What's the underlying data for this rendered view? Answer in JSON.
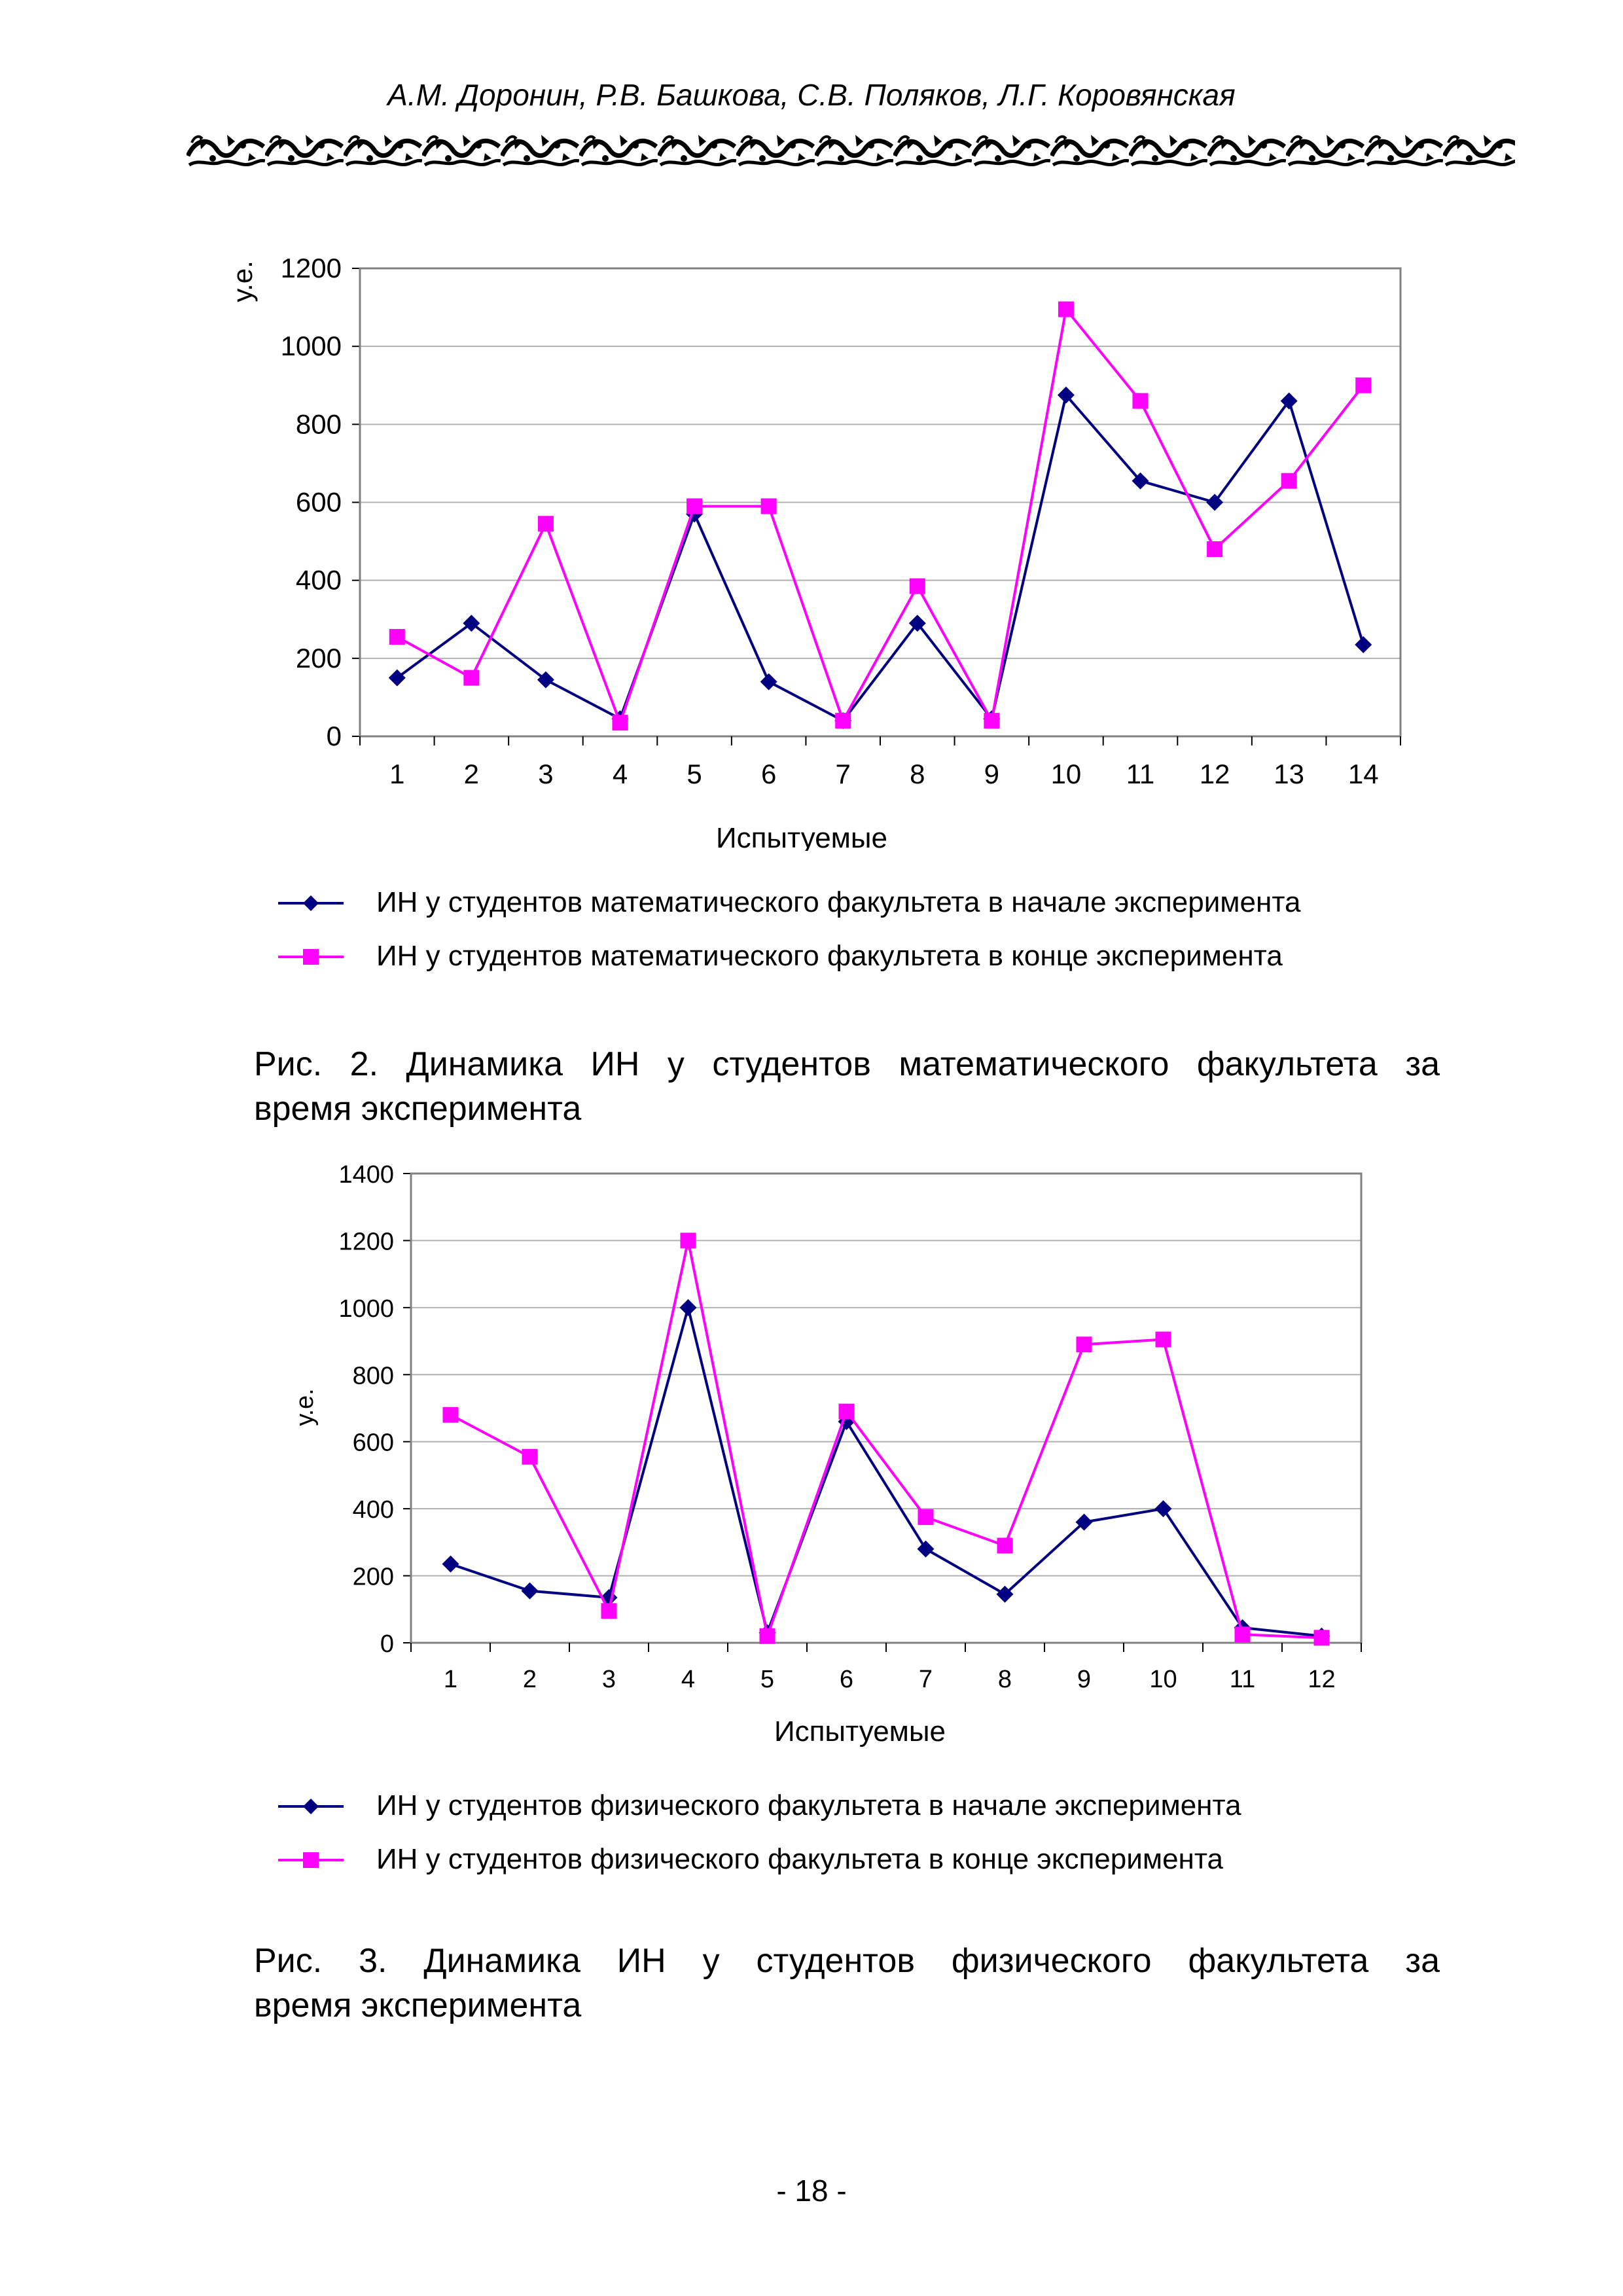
{
  "header": {
    "authors": "А.М. Доронин,  Р.В. Башкова, С.В. Поляков, Л.Г. Коровянская"
  },
  "figures": [
    {
      "caption": "Рис. 2. Динамика ИН у студентов математического факультета за время эксперимента",
      "caption_line1": "Рис. 2. Динамика ИН у студентов математического факультета за",
      "caption_line2": "время эксперимента",
      "legend": [
        "ИН у студентов математического факультета в начале эксперимента",
        "ИН у студентов математического факультета в конце эксперимента"
      ]
    },
    {
      "caption": "Рис. 3. Динамика ИН у студентов физического факультета за время эксперимента",
      "caption_line1": "Рис. 3. Динамика ИН у студентов физического факультета за",
      "caption_line2": "время эксперимента",
      "legend": [
        "ИН у студентов физического факультета в начале эксперимента",
        "ИН у студентов физического факультета в конце эксперимента"
      ]
    }
  ],
  "page_number": "- 18 -",
  "colors": {
    "series_start": "#000080",
    "series_end": "#ff00ff",
    "grid": "#b0b0b0",
    "frame": "#808080"
  },
  "chart_data": [
    {
      "type": "line",
      "title": "",
      "xlabel": "Испытуемые",
      "ylabel": "у.е.",
      "categories": [
        "1",
        "2",
        "3",
        "4",
        "5",
        "6",
        "7",
        "8",
        "9",
        "10",
        "11",
        "12",
        "13",
        "14"
      ],
      "ylim": [
        0,
        1200
      ],
      "yticks": [
        0,
        200,
        400,
        600,
        800,
        1000,
        1200
      ],
      "grid": true,
      "legend_position": "bottom",
      "series": [
        {
          "name": "ИН у студентов математического факультета в начале эксперимента",
          "marker": "diamond",
          "values": [
            150,
            290,
            145,
            45,
            570,
            140,
            40,
            290,
            45,
            875,
            655,
            600,
            860,
            235
          ]
        },
        {
          "name": "ИН у студентов математического факультета в конце эксперимента",
          "marker": "square",
          "values": [
            255,
            150,
            545,
            35,
            590,
            590,
            40,
            385,
            40,
            1095,
            860,
            480,
            655,
            900
          ]
        }
      ]
    },
    {
      "type": "line",
      "title": "",
      "xlabel": "Испытуемые",
      "ylabel": "у.е.",
      "categories": [
        "1",
        "2",
        "3",
        "4",
        "5",
        "6",
        "7",
        "8",
        "9",
        "10",
        "11",
        "12"
      ],
      "ylim": [
        0,
        1400
      ],
      "yticks": [
        0,
        200,
        400,
        600,
        800,
        1000,
        1200,
        1400
      ],
      "grid": true,
      "legend_position": "bottom",
      "series": [
        {
          "name": "ИН у студентов физического факультета в начале эксперимента",
          "marker": "diamond",
          "values": [
            235,
            155,
            135,
            1000,
            30,
            660,
            280,
            145,
            360,
            400,
            45,
            20
          ]
        },
        {
          "name": "ИН у студентов физического факультета в конце эксперимента",
          "marker": "square",
          "values": [
            680,
            555,
            95,
            1200,
            20,
            690,
            375,
            290,
            890,
            905,
            25,
            15
          ]
        }
      ]
    }
  ]
}
